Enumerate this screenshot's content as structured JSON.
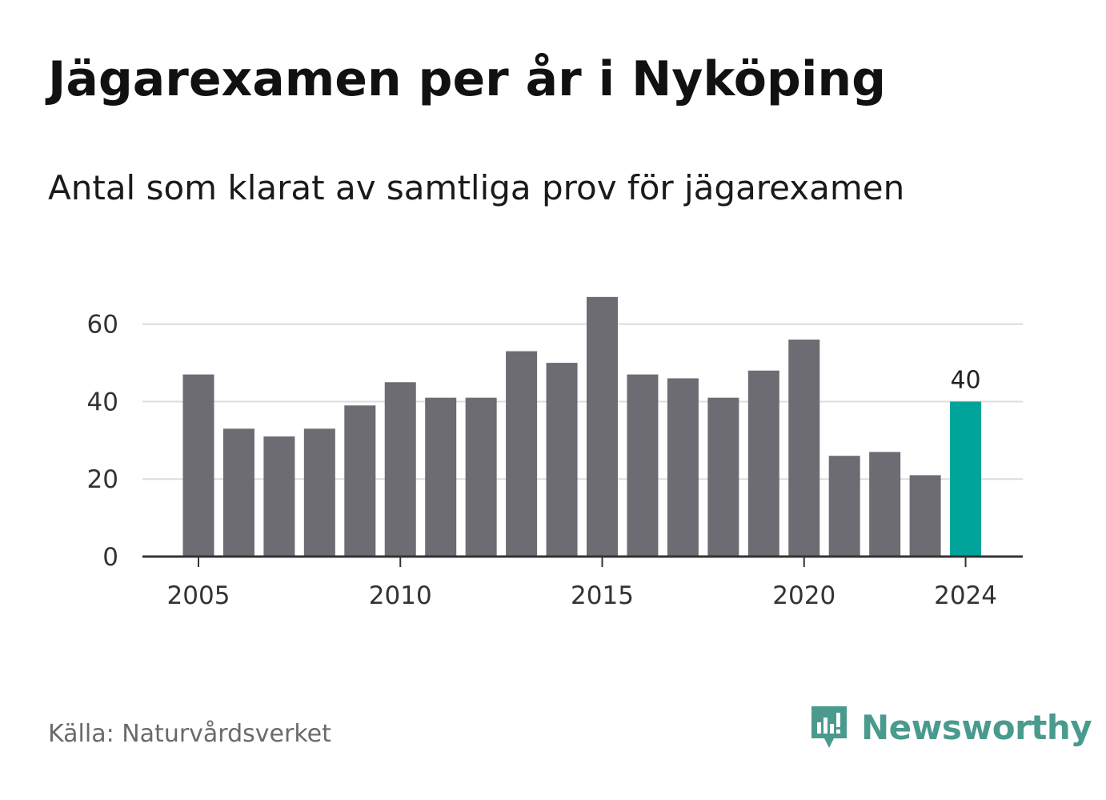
{
  "title": "Jägarexamen per år i Nyköping",
  "subtitle": "Antal som klarat av samtliga prov för jägarexamen",
  "source": "Källa: Naturvårdsverket",
  "brand": {
    "name": "Newsworthy",
    "icon": "newsworthy-logo-icon",
    "color": "#4a9a8e"
  },
  "colors": {
    "bar": "#6d6c73",
    "highlight": "#00a49a",
    "grid": "#dddddd",
    "axis": "#333333"
  },
  "chart_data": {
    "type": "bar",
    "categories": [
      "2005",
      "2006",
      "2007",
      "2008",
      "2009",
      "2010",
      "2011",
      "2012",
      "2013",
      "2014",
      "2015",
      "2016",
      "2017",
      "2018",
      "2019",
      "2020",
      "2021",
      "2022",
      "2023",
      "2024"
    ],
    "values": [
      47,
      33,
      31,
      33,
      39,
      45,
      41,
      41,
      53,
      50,
      67,
      47,
      46,
      41,
      48,
      56,
      26,
      27,
      21,
      40
    ],
    "highlight_index": 19,
    "highlight_label": "40",
    "x_tick_labels": [
      "2005",
      "2010",
      "2015",
      "2020",
      "2024"
    ],
    "y_ticks": [
      0,
      20,
      40,
      60
    ],
    "ylim": [
      0,
      68
    ],
    "grid": true
  }
}
